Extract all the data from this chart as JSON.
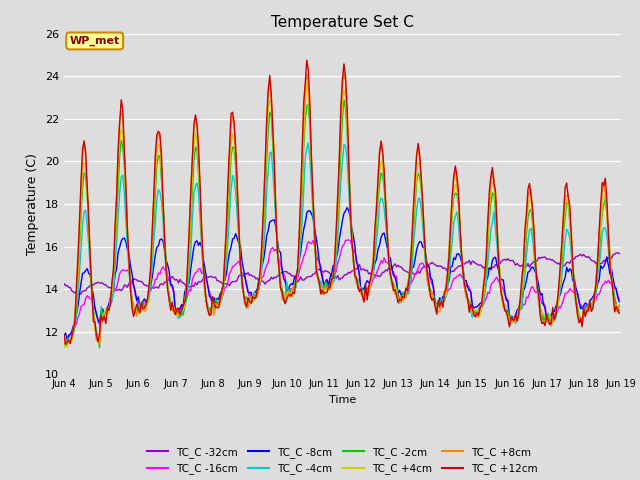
{
  "title": "Temperature Set C",
  "xlabel": "Time",
  "ylabel": "Temperature (C)",
  "ylim": [
    10,
    26
  ],
  "xlim": [
    0,
    360
  ],
  "bg_color": "#dddddd",
  "annotation_text": "WP_met",
  "annotation_bg": "#ffff99",
  "annotation_border": "#cc8800",
  "x_tick_labels": [
    "Jun 4",
    "Jun 5",
    "Jun 6",
    "Jun 7",
    "Jun 8",
    "Jun 9",
    "Jun 10",
    "Jun 11",
    "Jun 12",
    "Jun 13",
    "Jun 14",
    "Jun 15",
    "Jun 16",
    "Jun 17",
    "Jun 18",
    "Jun 19"
  ],
  "x_tick_positions": [
    0,
    24,
    48,
    72,
    96,
    120,
    144,
    168,
    192,
    216,
    240,
    264,
    288,
    312,
    336,
    360
  ],
  "series": [
    {
      "label": "TC_C -32cm",
      "color": "#9900cc"
    },
    {
      "label": "TC_C -16cm",
      "color": "#ff00ff"
    },
    {
      "label": "TC_C -8cm",
      "color": "#0000ff"
    },
    {
      "label": "TC_C -4cm",
      "color": "#00cccc"
    },
    {
      "label": "TC_C -2cm",
      "color": "#00cc00"
    },
    {
      "label": "TC_C +4cm",
      "color": "#cccc00"
    },
    {
      "label": "TC_C +8cm",
      "color": "#ff8800"
    },
    {
      "label": "TC_C +12cm",
      "color": "#cc0000"
    }
  ]
}
